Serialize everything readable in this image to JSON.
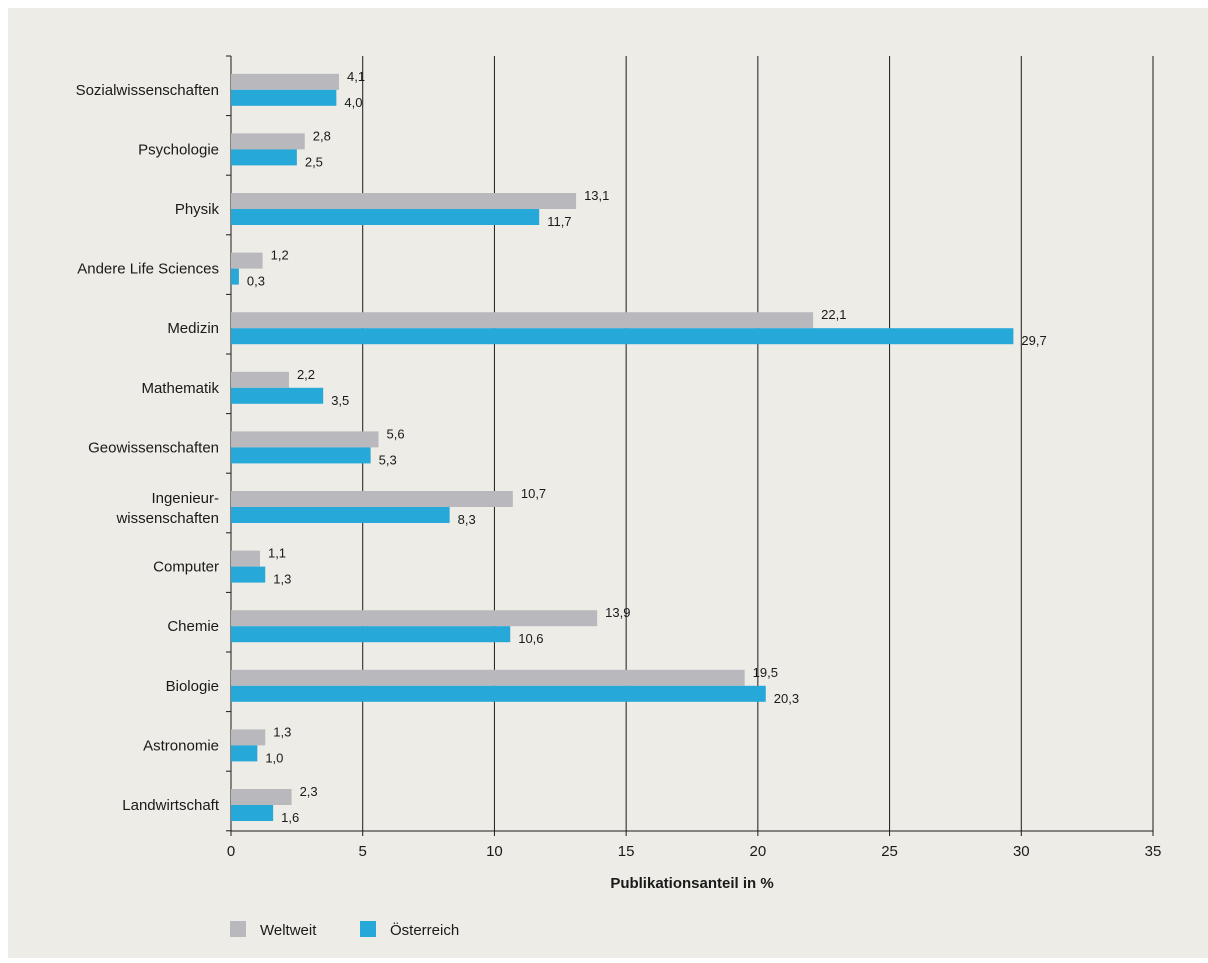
{
  "chart_data": {
    "type": "bar",
    "orientation": "horizontal",
    "categories": [
      "Sozialwissenschaften",
      "Psychologie",
      "Physik",
      "Andere Life Sciences",
      "Medizin",
      "Mathematik",
      "Geowissenschaften",
      "Ingenieur-\nwissenschaften",
      "Computer",
      "Chemie",
      "Biologie",
      "Astronomie",
      "Landwirtschaft"
    ],
    "series": [
      {
        "name": "Weltweit",
        "color": "#b9b9bd",
        "values": [
          4.1,
          2.8,
          13.1,
          1.2,
          22.1,
          2.2,
          5.6,
          10.7,
          1.1,
          13.9,
          19.5,
          1.3,
          2.3
        ],
        "labels": [
          "4,1",
          "2,8",
          "13,1",
          "1,2",
          "22,1",
          "2,2",
          "5,6",
          "10,7",
          "1,1",
          "13,9",
          "19,5",
          "1,3",
          "2,3"
        ]
      },
      {
        "name": "Österreich",
        "color": "#26a9d8",
        "values": [
          4.0,
          2.5,
          11.7,
          0.3,
          29.7,
          3.5,
          5.3,
          8.3,
          1.3,
          10.6,
          20.3,
          1.0,
          1.6
        ],
        "labels": [
          "4,0",
          "2,5",
          "11,7",
          "0,3",
          "29,7",
          "3,5",
          "5,3",
          "8,3",
          "1,3",
          "10,6",
          "20,3",
          "1,0",
          "1,6"
        ]
      }
    ],
    "xlim": [
      0,
      35
    ],
    "xticks": [
      "0",
      "5",
      "10",
      "15",
      "20",
      "25",
      "30",
      "35"
    ],
    "xlabel": "Publikationsanteil in %",
    "ylabel": "",
    "title": "",
    "grid": "vertical",
    "legend_position": "bottom-left"
  }
}
